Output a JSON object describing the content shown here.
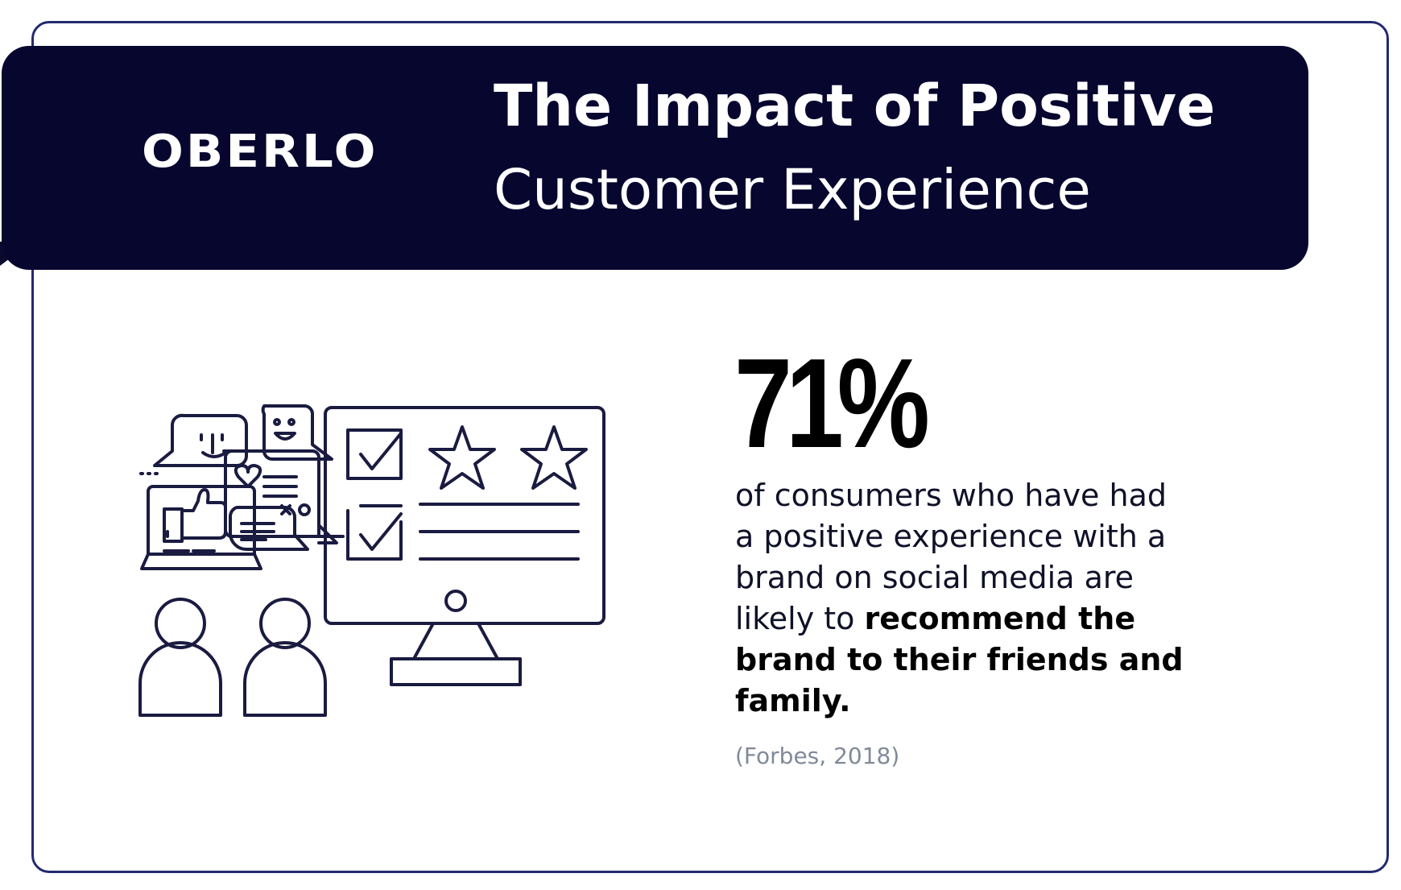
{
  "brand": {
    "logo_text": "OBERLO"
  },
  "header": {
    "title_line1": "The Impact of Positive",
    "title_line2": "Customer Experience"
  },
  "stat": {
    "value": "71%",
    "text_regular": "of consumers who have had a positive experience with a brand on social media are likely to",
    "text_bold": "recommend the brand to their friends and family.",
    "source": "(Forbes, 2018)"
  },
  "colors": {
    "header_bg": "#07062f",
    "border": "#232a6e",
    "text": "#000000",
    "source_text": "#808a99"
  },
  "illustration": {
    "icons": [
      "chat-bubble-face-icon",
      "laptop-thumbs-up-icon",
      "chat-bubble-heart-icon",
      "monitor-rating-icon",
      "star-icon",
      "checkbox-icon",
      "user-icon"
    ]
  }
}
